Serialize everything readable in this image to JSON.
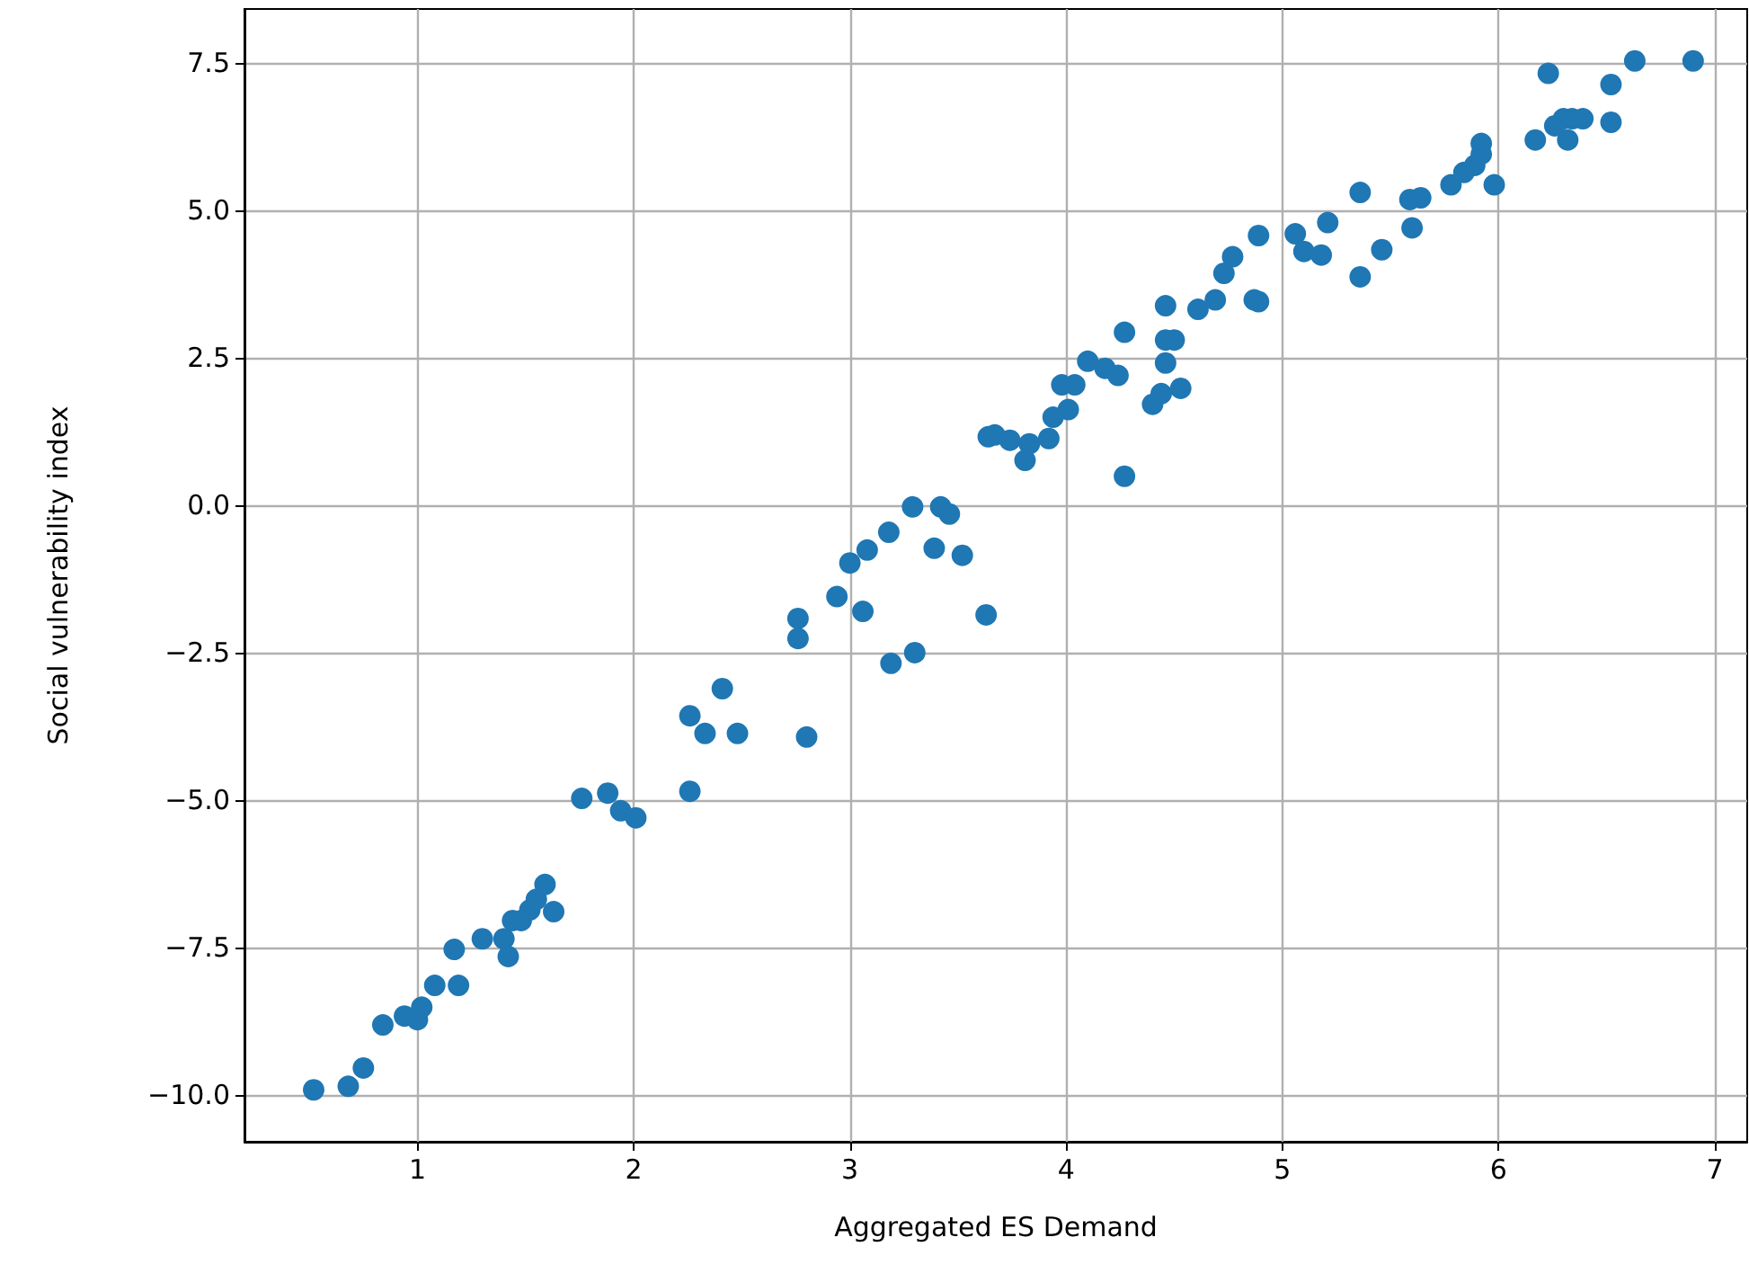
{
  "chart_data": {
    "type": "scatter",
    "xlabel": "Aggregated ES Demand",
    "ylabel": "Social vulnerability index",
    "xlim": [
      0.2,
      7.15
    ],
    "ylim": [
      -10.79,
      8.41
    ],
    "xticks": [
      1,
      2,
      3,
      4,
      5,
      6,
      7
    ],
    "yticks": [
      {
        "value": -10,
        "label": "−10.0"
      },
      {
        "value": -7.5,
        "label": "−7.5"
      },
      {
        "value": -5,
        "label": "−5.0"
      },
      {
        "value": -2.5,
        "label": "−2.5"
      },
      {
        "value": 0,
        "label": "0.0"
      },
      {
        "value": 2.5,
        "label": "2.5"
      },
      {
        "value": 5,
        "label": "5.0"
      },
      {
        "value": 7.5,
        "label": "7.5"
      }
    ],
    "grid": true,
    "marker": "circle",
    "series": [
      {
        "color": "#1f77b4",
        "x": [
          0.52,
          0.68,
          0.75,
          0.84,
          0.94,
          1.0,
          1.02,
          1.08,
          1.19,
          1.17,
          1.3,
          1.4,
          1.42,
          1.44,
          1.48,
          1.52,
          1.55,
          1.59,
          1.63,
          1.76,
          1.88,
          1.94,
          2.01,
          2.26,
          2.26,
          2.33,
          2.41,
          2.48,
          2.8,
          2.76,
          2.76,
          2.94,
          3.0,
          3.06,
          3.08,
          3.18,
          3.19,
          3.29,
          3.3,
          3.39,
          3.42,
          3.46,
          3.52,
          3.63,
          3.64,
          3.67,
          3.74,
          3.81,
          3.83,
          3.92,
          3.94,
          3.98,
          4.01,
          4.04,
          4.1,
          4.18,
          4.24,
          4.27,
          4.27,
          4.4,
          4.44,
          4.46,
          4.46,
          4.46,
          4.5,
          4.53,
          4.61,
          4.69,
          4.73,
          4.77,
          4.87,
          4.89,
          4.89,
          5.06,
          5.1,
          5.18,
          5.21,
          5.36,
          5.36,
          5.46,
          5.59,
          5.6,
          5.64,
          5.78,
          5.84,
          5.89,
          5.92,
          5.92,
          5.98,
          6.17,
          6.23,
          6.26,
          6.3,
          6.32,
          6.34,
          6.39,
          6.52,
          6.52,
          6.63,
          6.9
        ],
        "values": [
          -9.91,
          -9.85,
          -9.54,
          -8.81,
          -8.66,
          -8.72,
          -8.51,
          -8.14,
          -8.14,
          -7.53,
          -7.35,
          -7.35,
          -7.65,
          -7.04,
          -7.04,
          -6.86,
          -6.68,
          -6.43,
          -6.89,
          -4.97,
          -4.88,
          -5.18,
          -5.3,
          -4.85,
          -3.57,
          -3.87,
          -3.11,
          -3.87,
          -3.93,
          -1.92,
          -2.26,
          -1.55,
          -0.98,
          -1.8,
          -0.76,
          -0.46,
          -2.68,
          -0.03,
          -2.5,
          -0.73,
          -0.03,
          -0.15,
          -0.85,
          -1.86,
          1.16,
          1.19,
          1.1,
          0.76,
          1.04,
          1.13,
          1.49,
          2.04,
          1.62,
          2.04,
          2.44,
          2.32,
          2.2,
          2.93,
          0.49,
          1.71,
          1.89,
          2.8,
          3.38,
          2.41,
          2.8,
          1.98,
          3.32,
          3.48,
          3.93,
          4.21,
          3.48,
          3.45,
          4.57,
          4.6,
          4.3,
          4.24,
          4.79,
          5.3,
          3.87,
          4.33,
          5.18,
          4.7,
          5.21,
          5.43,
          5.64,
          5.76,
          6.13,
          5.95,
          5.43,
          6.19,
          7.32,
          6.43,
          6.55,
          6.19,
          6.55,
          6.55,
          7.13,
          6.49,
          7.53,
          7.53
        ]
      }
    ]
  }
}
